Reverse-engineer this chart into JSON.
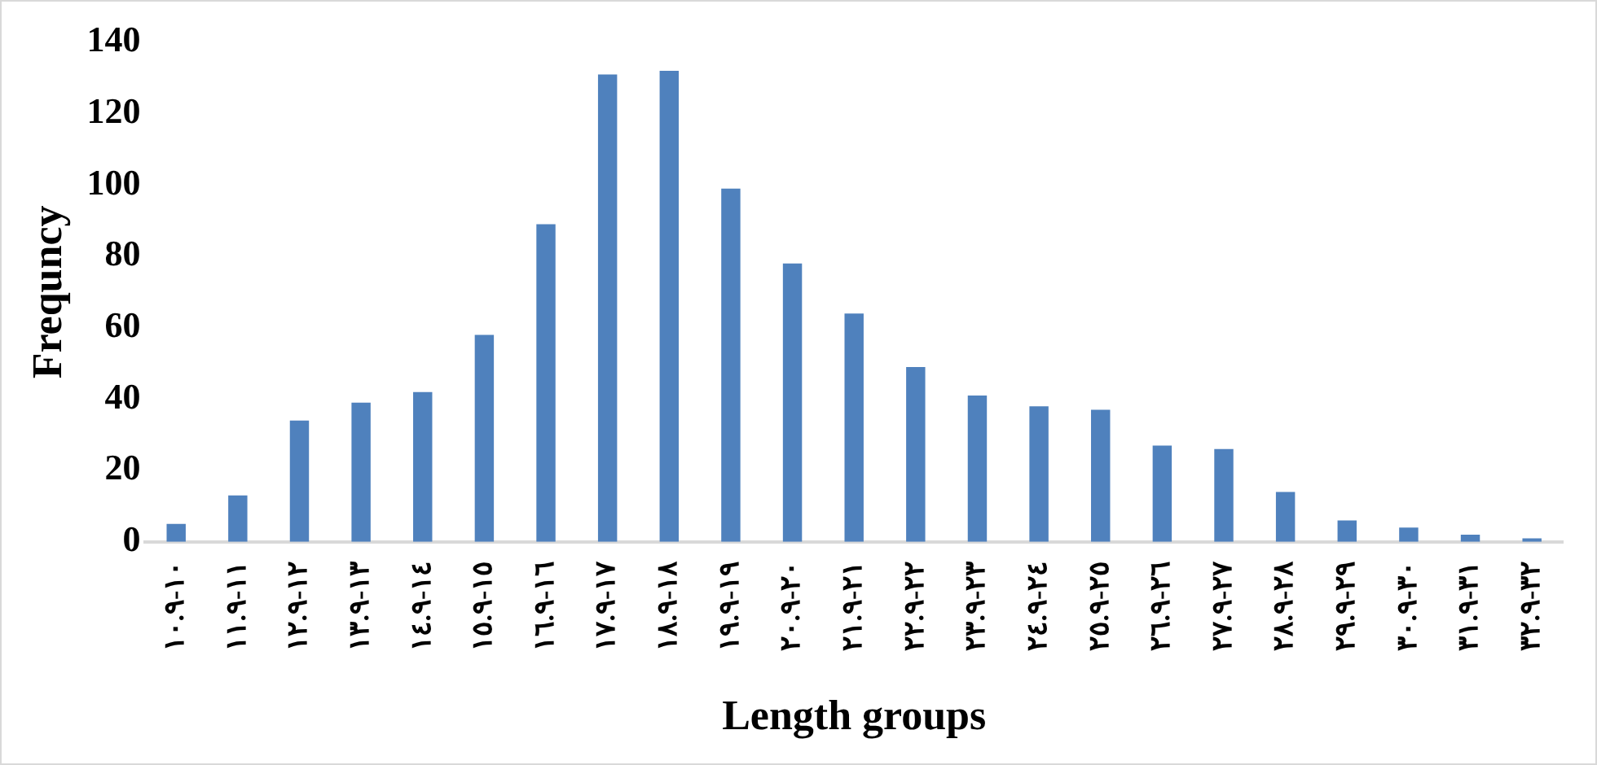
{
  "chart_data": {
    "type": "bar",
    "xlabel": "Length groups",
    "ylabel": "Frequncy",
    "categories": [
      "١٠-١٠.٩",
      "١١-١١.٩",
      "١٢-١٢.٩",
      "١٣-١٣.٩",
      "١٤-١٤.٩",
      "١٥-١٥.٩",
      "١٦-١٦.٩",
      "١٧-١٧.٩",
      "١٨-١٨.٩",
      "١٩-١٩.٩",
      "٢٠-٢٠.٩",
      "٢١-٢١.٩",
      "٢٢-٢٢.٩",
      "٢٣-٢٣.٩",
      "٢٤-٢٤.٩",
      "٢٥-٢٥.٩",
      "٢٦-٢٦.٩",
      "٢٧-٢٧.٩",
      "٢٨-٢٨.٩",
      "٢٩-٢٩.٩",
      "٣٠-٣٠.٩",
      "٣١-٣١.٩",
      "٣٢-٣٢.٩"
    ],
    "values": [
      5,
      13,
      34,
      39,
      42,
      58,
      89,
      131,
      132,
      99,
      78,
      64,
      49,
      41,
      38,
      37,
      27,
      26,
      14,
      6,
      4,
      2,
      1
    ],
    "color": "#4f81bd",
    "ylim": [
      0,
      140
    ],
    "yticks": [
      0,
      20,
      40,
      60,
      80,
      100,
      120,
      140
    ],
    "grid": false,
    "legend": false
  }
}
